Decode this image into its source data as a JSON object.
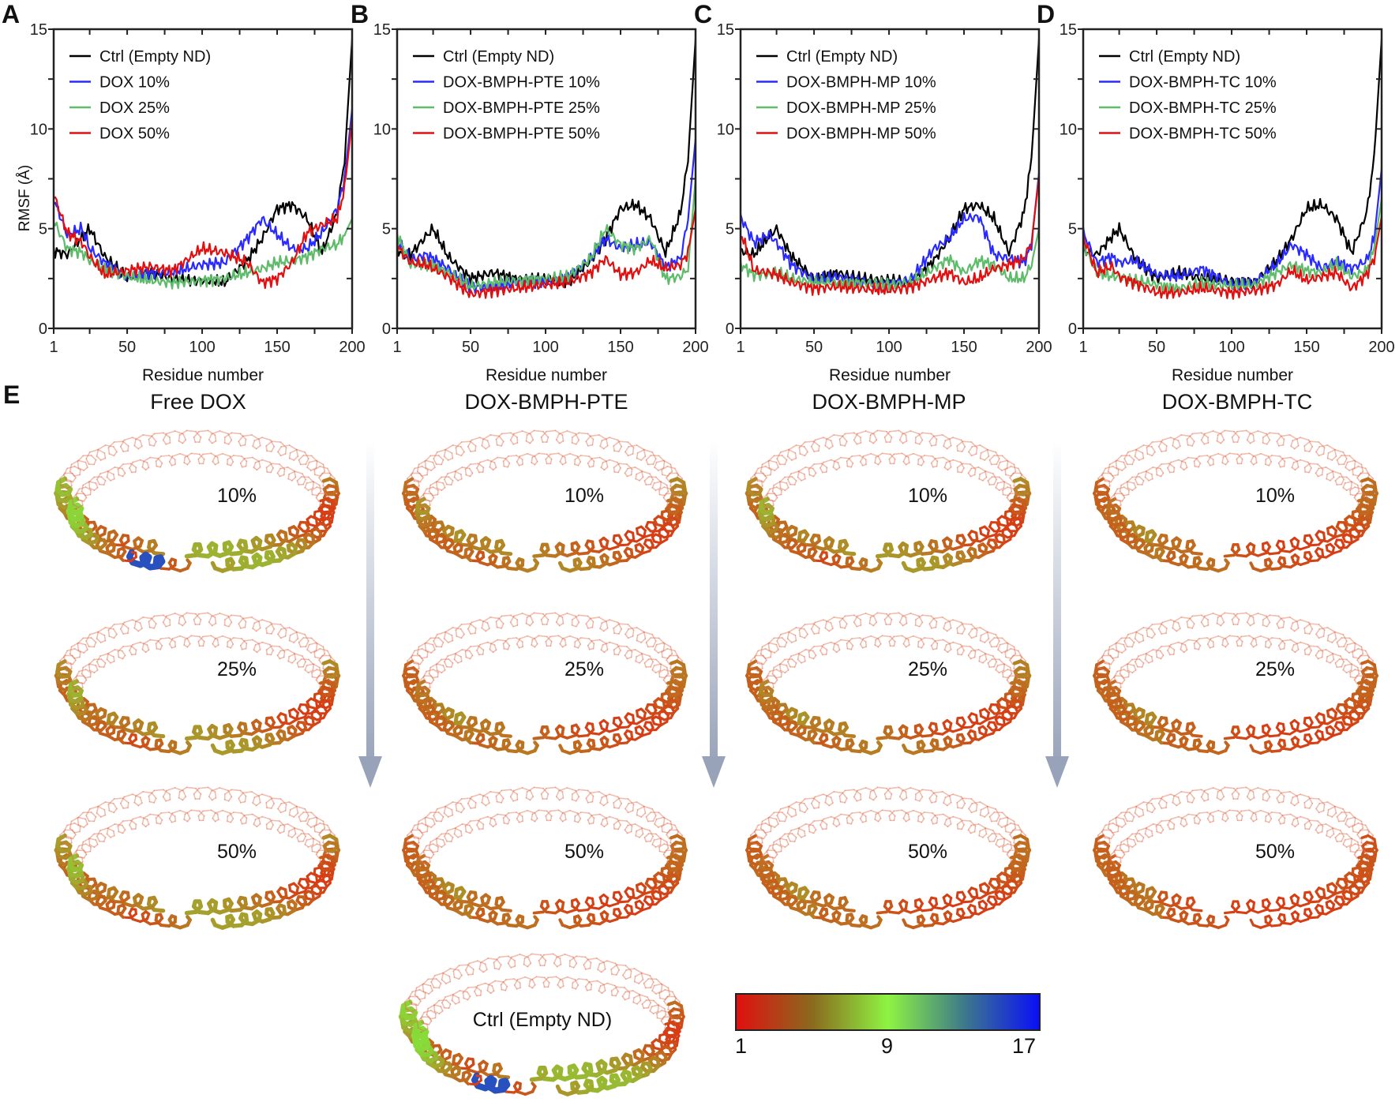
{
  "panel_letters": [
    "A",
    "B",
    "C",
    "D",
    "E"
  ],
  "chart_data": [
    {
      "type": "line",
      "panel": "A",
      "xlabel": "Residue number",
      "ylabel": "RMSF (Å)",
      "xlim": [
        1,
        200
      ],
      "ylim": [
        0,
        15
      ],
      "xticks": [
        1,
        50,
        100,
        150,
        200
      ],
      "yticks": [
        0,
        5,
        10,
        15
      ],
      "legend": "top-left",
      "x": [
        1,
        10,
        20,
        25,
        35,
        50,
        65,
        80,
        100,
        115,
        130,
        140,
        150,
        160,
        170,
        180,
        190,
        195,
        200
      ],
      "series": [
        {
          "name": "Ctrl (Empty ND)",
          "color": "#000000",
          "values": [
            3.9,
            3.7,
            4.6,
            5.0,
            3.6,
            2.5,
            2.8,
            2.5,
            2.4,
            2.3,
            3.4,
            4.5,
            6.0,
            6.2,
            5.5,
            3.8,
            5.8,
            8.5,
            14.5
          ]
        },
        {
          "name": "DOX 10%",
          "color": "#2a2aff",
          "values": [
            6.5,
            4.7,
            5.0,
            4.0,
            3.3,
            2.6,
            2.8,
            2.8,
            3.2,
            3.3,
            4.5,
            5.5,
            4.7,
            4.0,
            4.0,
            4.8,
            6.0,
            7.5,
            11.0
          ]
        },
        {
          "name": "DOX 25%",
          "color": "#5dbb6a",
          "values": [
            5.4,
            4.0,
            3.8,
            3.4,
            3.0,
            2.6,
            2.4,
            2.3,
            2.4,
            2.5,
            2.8,
            3.0,
            3.3,
            3.4,
            3.6,
            4.0,
            4.2,
            4.7,
            5.5
          ]
        },
        {
          "name": "DOX 50%",
          "color": "#e01010",
          "values": [
            6.7,
            4.8,
            4.3,
            3.6,
            2.7,
            2.9,
            3.1,
            2.9,
            4.0,
            3.8,
            3.3,
            2.3,
            2.5,
            3.3,
            4.8,
            5.2,
            5.5,
            7.0,
            10.5
          ]
        }
      ]
    },
    {
      "type": "line",
      "panel": "B",
      "xlabel": "Residue number",
      "ylabel": "",
      "xlim": [
        1,
        200
      ],
      "ylim": [
        0,
        15
      ],
      "xticks": [
        1,
        50,
        100,
        150,
        200
      ],
      "yticks": [
        0,
        5,
        10,
        15
      ],
      "legend": "top-left",
      "x": [
        1,
        10,
        20,
        25,
        35,
        50,
        65,
        80,
        100,
        115,
        130,
        140,
        150,
        160,
        170,
        180,
        190,
        195,
        200
      ],
      "series": [
        {
          "name": "Ctrl (Empty ND)",
          "color": "#000000",
          "values": [
            3.9,
            3.7,
            4.6,
            5.0,
            3.6,
            2.5,
            2.8,
            2.5,
            2.4,
            2.3,
            3.4,
            4.5,
            6.0,
            6.2,
            5.5,
            3.8,
            5.8,
            8.5,
            14.5
          ]
        },
        {
          "name": "DOX-BMPH-PTE 10%",
          "color": "#2a2aff",
          "values": [
            4.4,
            3.4,
            3.7,
            3.5,
            3.0,
            2.1,
            2.0,
            2.3,
            2.3,
            2.6,
            3.5,
            4.5,
            4.0,
            4.2,
            4.3,
            3.1,
            3.5,
            5.5,
            9.5
          ]
        },
        {
          "name": "DOX-BMPH-PTE 25%",
          "color": "#5dbb6a",
          "values": [
            4.7,
            3.2,
            3.2,
            3.2,
            2.8,
            2.1,
            2.3,
            2.4,
            2.5,
            2.6,
            3.5,
            5.0,
            4.2,
            4.0,
            4.5,
            2.5,
            2.6,
            3.0,
            7.5
          ]
        },
        {
          "name": "DOX-BMPH-PTE 50%",
          "color": "#e01010",
          "values": [
            4.1,
            3.3,
            3.2,
            3.0,
            2.6,
            1.7,
            1.9,
            2.0,
            2.2,
            2.3,
            2.8,
            3.5,
            2.7,
            2.8,
            3.4,
            3.0,
            3.2,
            3.8,
            6.0
          ]
        }
      ]
    },
    {
      "type": "line",
      "panel": "C",
      "xlabel": "Residue number",
      "ylabel": "",
      "xlim": [
        1,
        200
      ],
      "ylim": [
        0,
        15
      ],
      "xticks": [
        1,
        50,
        100,
        150,
        200
      ],
      "yticks": [
        0,
        5,
        10,
        15
      ],
      "legend": "top-left",
      "x": [
        1,
        10,
        20,
        25,
        35,
        50,
        65,
        80,
        100,
        115,
        130,
        140,
        150,
        160,
        170,
        180,
        190,
        195,
        200
      ],
      "series": [
        {
          "name": "Ctrl (Empty ND)",
          "color": "#000000",
          "values": [
            3.9,
            3.7,
            4.6,
            5.0,
            3.6,
            2.5,
            2.8,
            2.5,
            2.4,
            2.3,
            3.4,
            4.5,
            6.0,
            6.2,
            5.5,
            3.8,
            5.8,
            8.5,
            14.5
          ]
        },
        {
          "name": "DOX-BMPH-MP 10%",
          "color": "#2a2aff",
          "values": [
            5.6,
            4.3,
            4.7,
            4.3,
            3.2,
            2.4,
            2.6,
            2.3,
            2.2,
            2.5,
            4.0,
            4.5,
            5.5,
            5.6,
            3.7,
            3.5,
            3.3,
            4.2,
            7.8
          ]
        },
        {
          "name": "DOX-BMPH-MP 25%",
          "color": "#5dbb6a",
          "values": [
            3.2,
            2.7,
            2.7,
            2.8,
            2.5,
            2.3,
            2.3,
            2.3,
            2.2,
            2.3,
            3.0,
            3.5,
            2.8,
            3.4,
            3.2,
            2.5,
            2.5,
            3.2,
            5.0
          ]
        },
        {
          "name": "DOX-BMPH-MP 50%",
          "color": "#e01010",
          "values": [
            4.8,
            2.9,
            2.8,
            2.7,
            2.3,
            2.0,
            2.1,
            2.0,
            1.9,
            2.1,
            2.5,
            2.8,
            2.3,
            2.5,
            3.0,
            3.2,
            3.5,
            4.3,
            7.6
          ]
        }
      ]
    },
    {
      "type": "line",
      "panel": "D",
      "xlabel": "Residue number",
      "ylabel": "",
      "xlim": [
        1,
        200
      ],
      "ylim": [
        0,
        15
      ],
      "xticks": [
        1,
        50,
        100,
        150,
        200
      ],
      "yticks": [
        0,
        5,
        10,
        15
      ],
      "legend": "top-left",
      "x": [
        1,
        10,
        20,
        25,
        35,
        50,
        65,
        80,
        100,
        115,
        130,
        140,
        150,
        160,
        170,
        180,
        190,
        195,
        200
      ],
      "series": [
        {
          "name": "Ctrl (Empty ND)",
          "color": "#000000",
          "values": [
            3.9,
            3.7,
            4.6,
            5.0,
            3.6,
            2.5,
            2.8,
            2.5,
            2.4,
            2.3,
            3.4,
            4.5,
            6.0,
            6.2,
            5.5,
            3.8,
            5.8,
            8.5,
            14.5
          ]
        },
        {
          "name": "DOX-BMPH-TC 10%",
          "color": "#2a2aff",
          "values": [
            4.8,
            3.3,
            3.6,
            3.3,
            3.4,
            2.7,
            2.6,
            3.0,
            2.2,
            2.3,
            3.2,
            4.2,
            3.7,
            3.0,
            3.4,
            3.0,
            3.4,
            4.5,
            8.0
          ]
        },
        {
          "name": "DOX-BMPH-TC 25%",
          "color": "#5dbb6a",
          "values": [
            4.2,
            2.8,
            2.6,
            2.6,
            2.4,
            2.2,
            2.0,
            2.3,
            2.1,
            2.2,
            2.8,
            3.2,
            2.9,
            2.8,
            3.2,
            2.6,
            2.9,
            4.0,
            6.5
          ]
        },
        {
          "name": "DOX-BMPH-TC 50%",
          "color": "#e01010",
          "values": [
            4.6,
            2.8,
            3.1,
            2.6,
            2.3,
            1.8,
            1.8,
            2.0,
            1.8,
            1.9,
            2.2,
            2.9,
            2.4,
            2.6,
            2.8,
            2.0,
            2.7,
            3.5,
            5.6
          ]
        }
      ]
    }
  ],
  "panel_e": {
    "columns": [
      {
        "title": "Free DOX",
        "rows": [
          "10%",
          "25%",
          "50%"
        ]
      },
      {
        "title": "DOX-BMPH-PTE",
        "rows": [
          "10%",
          "25%",
          "50%"
        ]
      },
      {
        "title": "DOX-BMPH-MP",
        "rows": [
          "10%",
          "25%",
          "50%"
        ]
      },
      {
        "title": "DOX-BMPH-TC",
        "rows": [
          "10%",
          "25%",
          "50%"
        ]
      }
    ],
    "control_label": "Ctrl (Empty ND)",
    "colorbar": {
      "min": "1",
      "mid": "9",
      "max": "17",
      "colors": [
        "#e01010",
        "#8ef442",
        "#0a10f5"
      ]
    }
  }
}
